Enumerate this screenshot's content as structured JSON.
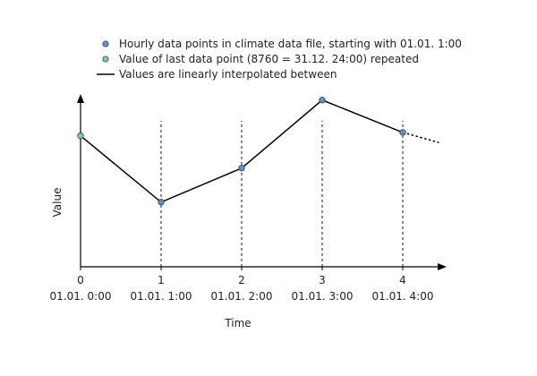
{
  "chart_data": {
    "type": "line",
    "xlabel": "Time",
    "ylabel": "Value",
    "x": [
      0,
      1,
      2,
      3,
      4
    ],
    "x_tick_labels": [
      "0",
      "1",
      "2",
      "3",
      "4"
    ],
    "x_date_labels": [
      "01.01. 0:00",
      "01.01. 1:00",
      "01.01. 2:00",
      "01.01. 3:00",
      "01.01. 4:00"
    ],
    "xlim": [
      0,
      4.5
    ],
    "ylim": [
      0,
      1.0
    ],
    "grid": "vertical-dashed",
    "series": [
      {
        "name": "Values are linearly interpolated between",
        "x": [
          0,
          1,
          2,
          3,
          4
        ],
        "values": [
          0.77,
          0.38,
          0.58,
          0.98,
          0.79
        ],
        "extension_to": {
          "x": 4.45,
          "y": 0.73
        },
        "color": "#000000"
      }
    ],
    "markers": [
      {
        "name": "Value of last data point (8760 = 31.12. 24:00) repeated",
        "x": 0,
        "y": 0.77,
        "color": "#7fc8a4"
      },
      {
        "name": "Hourly data points in climate data file, starting with 01.01. 1:00",
        "x": 1,
        "y": 0.38,
        "color": "#5b8fd0"
      },
      {
        "name": "Hourly data points in climate data file, starting with 01.01. 1:00",
        "x": 2,
        "y": 0.58,
        "color": "#5b8fd0"
      },
      {
        "name": "Hourly data points in climate data file, starting with 01.01. 1:00",
        "x": 3,
        "y": 0.98,
        "color": "#5b8fd0"
      },
      {
        "name": "Hourly data points in climate data file, starting with 01.01. 1:00",
        "x": 4,
        "y": 0.79,
        "color": "#5b8fd0"
      }
    ],
    "legend": {
      "placement": "top-center",
      "entries": [
        {
          "label": "Hourly data points in climate data file, starting with 01.01. 1:00",
          "symbol": "dot",
          "color": "#5b8fd0"
        },
        {
          "label": "Value of last data point (8760 = 31.12. 24:00) repeated",
          "symbol": "dot",
          "color": "#7fc8a4"
        },
        {
          "label": "Values are linearly interpolated between",
          "symbol": "line",
          "color": "#000000"
        }
      ]
    }
  }
}
